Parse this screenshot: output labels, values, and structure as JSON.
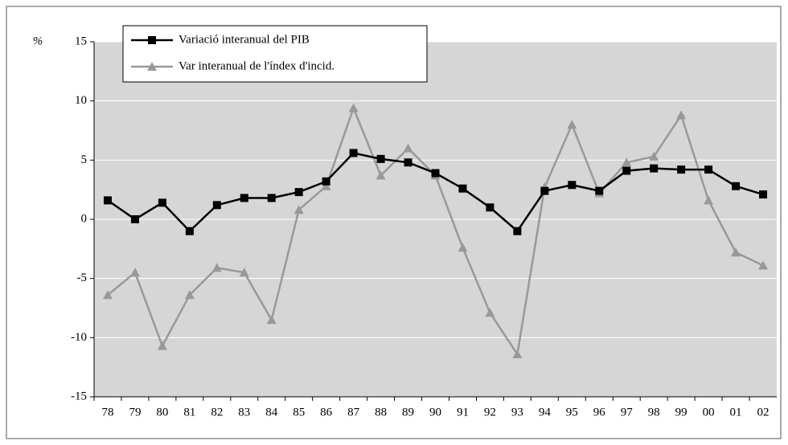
{
  "chart_data": {
    "type": "line",
    "y_label": "%",
    "categories": [
      "78",
      "79",
      "80",
      "81",
      "82",
      "83",
      "84",
      "85",
      "86",
      "87",
      "88",
      "89",
      "90",
      "91",
      "92",
      "93",
      "94",
      "95",
      "96",
      "97",
      "98",
      "99",
      "00",
      "01",
      "02"
    ],
    "series": [
      {
        "name": "Variació interanual del PIB",
        "color": "#000000",
        "marker": "square",
        "values": [
          1.6,
          0,
          1.4,
          -1.0,
          1.2,
          1.8,
          1.8,
          2.3,
          3.2,
          5.6,
          5.1,
          4.8,
          3.9,
          2.6,
          1.0,
          -1.0,
          2.4,
          2.9,
          2.4,
          4.1,
          4.3,
          4.2,
          4.2,
          2.8,
          2.1
        ]
      },
      {
        "name": "Var interanual  de l'índex d'incid.",
        "color": "#999999",
        "marker": "triangle",
        "values": [
          -6.4,
          -4.5,
          -10.7,
          -6.4,
          -4.1,
          -4.5,
          -8.5,
          0.8,
          2.8,
          9.4,
          3.7,
          6.0,
          3.7,
          -2.4,
          -7.9,
          -11.4,
          2.7,
          8.0,
          2.2,
          4.8,
          5.3,
          8.8,
          1.6,
          -2.8,
          -3.9
        ]
      }
    ],
    "ylim": [
      -15,
      15
    ],
    "yticks": [
      -15,
      -10,
      -5,
      0,
      5,
      10,
      15
    ],
    "grid": true,
    "legend": "top-left"
  }
}
